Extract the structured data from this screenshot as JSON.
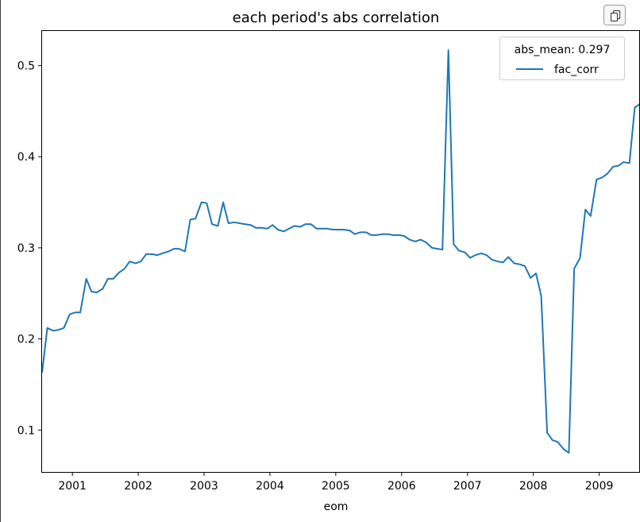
{
  "toolbar": {
    "copy_icon": "copy-icon"
  },
  "chart_data": {
    "type": "line",
    "title": "each period's abs correlation",
    "xlabel": "eom",
    "ylabel": "",
    "x_ticks": [
      "2001",
      "2002",
      "2003",
      "2004",
      "2005",
      "2006",
      "2007",
      "2008",
      "2009"
    ],
    "y_ticks": [
      "0.1",
      "0.2",
      "0.3",
      "0.4",
      "0.5"
    ],
    "xlim": [
      2000.54,
      2009.62
    ],
    "ylim": [
      0.054,
      0.538
    ],
    "grid": false,
    "legend": {
      "title": "abs_mean: 0.297",
      "placement": "top-right"
    },
    "series": [
      {
        "name": "fac_corr",
        "color": "#1f77b4",
        "x": [
          2000.54,
          2000.62,
          2000.71,
          2000.79,
          2000.87,
          2000.96,
          2001.04,
          2001.12,
          2001.21,
          2001.29,
          2001.37,
          2001.46,
          2001.54,
          2001.62,
          2001.71,
          2001.79,
          2001.87,
          2001.96,
          2002.04,
          2002.12,
          2002.21,
          2002.29,
          2002.37,
          2002.46,
          2002.54,
          2002.62,
          2002.71,
          2002.79,
          2002.87,
          2002.96,
          2003.04,
          2003.12,
          2003.21,
          2003.29,
          2003.37,
          2003.46,
          2003.54,
          2003.62,
          2003.71,
          2003.79,
          2003.87,
          2003.96,
          2004.04,
          2004.12,
          2004.21,
          2004.29,
          2004.37,
          2004.46,
          2004.54,
          2004.62,
          2004.71,
          2004.79,
          2004.87,
          2004.96,
          2005.04,
          2005.12,
          2005.21,
          2005.29,
          2005.37,
          2005.46,
          2005.54,
          2005.62,
          2005.71,
          2005.79,
          2005.87,
          2005.96,
          2006.04,
          2006.12,
          2006.21,
          2006.29,
          2006.37,
          2006.46,
          2006.54,
          2006.62,
          2006.71,
          2006.79,
          2006.87,
          2006.96,
          2007.04,
          2007.12,
          2007.21,
          2007.29,
          2007.37,
          2007.46,
          2007.54,
          2007.62,
          2007.71,
          2007.79,
          2007.87,
          2007.96,
          2008.04,
          2008.12,
          2008.21,
          2008.29,
          2008.37,
          2008.46,
          2008.54,
          2008.62,
          2008.71,
          2008.79,
          2008.87,
          2008.96,
          2009.04,
          2009.12,
          2009.21,
          2009.29,
          2009.37,
          2009.46,
          2009.54,
          2009.62
        ],
        "y": [
          0.163,
          0.212,
          0.209,
          0.21,
          0.212,
          0.227,
          0.229,
          0.229,
          0.266,
          0.252,
          0.251,
          0.255,
          0.266,
          0.266,
          0.273,
          0.277,
          0.285,
          0.283,
          0.285,
          0.293,
          0.293,
          0.292,
          0.294,
          0.296,
          0.299,
          0.299,
          0.296,
          0.331,
          0.332,
          0.35,
          0.349,
          0.326,
          0.324,
          0.35,
          0.327,
          0.328,
          0.327,
          0.326,
          0.325,
          0.322,
          0.322,
          0.321,
          0.325,
          0.32,
          0.318,
          0.321,
          0.324,
          0.323,
          0.326,
          0.326,
          0.321,
          0.321,
          0.321,
          0.32,
          0.32,
          0.32,
          0.319,
          0.315,
          0.317,
          0.317,
          0.314,
          0.314,
          0.315,
          0.315,
          0.314,
          0.314,
          0.313,
          0.309,
          0.307,
          0.309,
          0.306,
          0.3,
          0.299,
          0.298,
          0.517,
          0.304,
          0.297,
          0.295,
          0.289,
          0.292,
          0.294,
          0.292,
          0.287,
          0.285,
          0.284,
          0.29,
          0.283,
          0.282,
          0.28,
          0.267,
          0.272,
          0.247,
          0.097,
          0.089,
          0.087,
          0.079,
          0.075,
          0.277,
          0.289,
          0.342,
          0.335,
          0.375,
          0.377,
          0.381,
          0.389,
          0.39,
          0.394,
          0.393,
          0.454,
          0.458
        ]
      }
    ]
  }
}
